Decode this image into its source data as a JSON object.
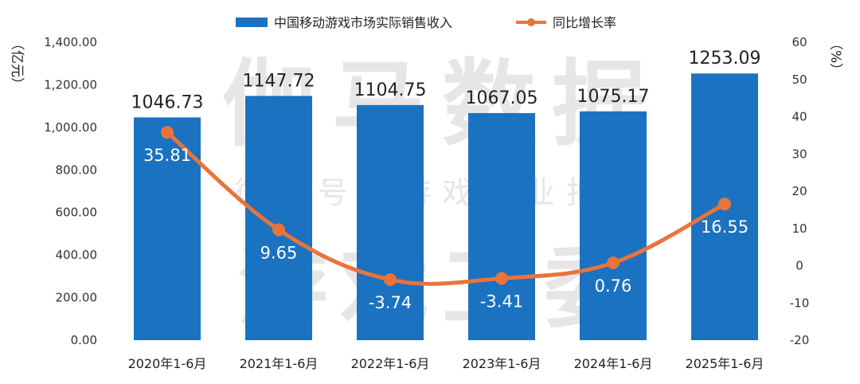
{
  "chart_data": {
    "type": "bar",
    "categories": [
      "2020年1-6月",
      "2021年1-6月",
      "2022年1-6月",
      "2023年1-6月",
      "2024年1-6月",
      "2025年1-6月"
    ],
    "series": [
      {
        "name": "中国移动游戏市场实际销售收入",
        "type": "bar",
        "axis": "left",
        "color": "#1a72c0",
        "values": [
          1046.73,
          1147.72,
          1104.75,
          1067.05,
          1075.17,
          1253.09
        ],
        "labels": [
          "1046.73",
          "1147.72",
          "1104.75",
          "1067.05",
          "1075.17",
          "1253.09"
        ]
      },
      {
        "name": "同比增长率",
        "type": "line",
        "axis": "right",
        "color": "#e8743b",
        "values": [
          35.81,
          9.65,
          -3.74,
          -3.41,
          0.76,
          16.55
        ],
        "labels": [
          "35.81",
          "9.65",
          "-3.74",
          "-3.41",
          "0.76",
          "16.55"
        ]
      }
    ],
    "y_left": {
      "label": "（亿元）",
      "range": [
        0,
        1400
      ],
      "ticks": [
        "0.00",
        "200.00",
        "400.00",
        "600.00",
        "800.00",
        "1,000.00",
        "1,200.00",
        "1,400.00"
      ]
    },
    "y_right": {
      "label": "（%）",
      "range": [
        -20,
        60
      ],
      "ticks": [
        "-20",
        "-10",
        "0",
        "10",
        "20",
        "30",
        "40",
        "50",
        "60"
      ]
    },
    "legend_position": "top-center",
    "grid": false
  },
  "watermark": {
    "line1": "伽马数据",
    "line2": "微信号：游戏产业报告",
    "line3": "游戏工委"
  }
}
